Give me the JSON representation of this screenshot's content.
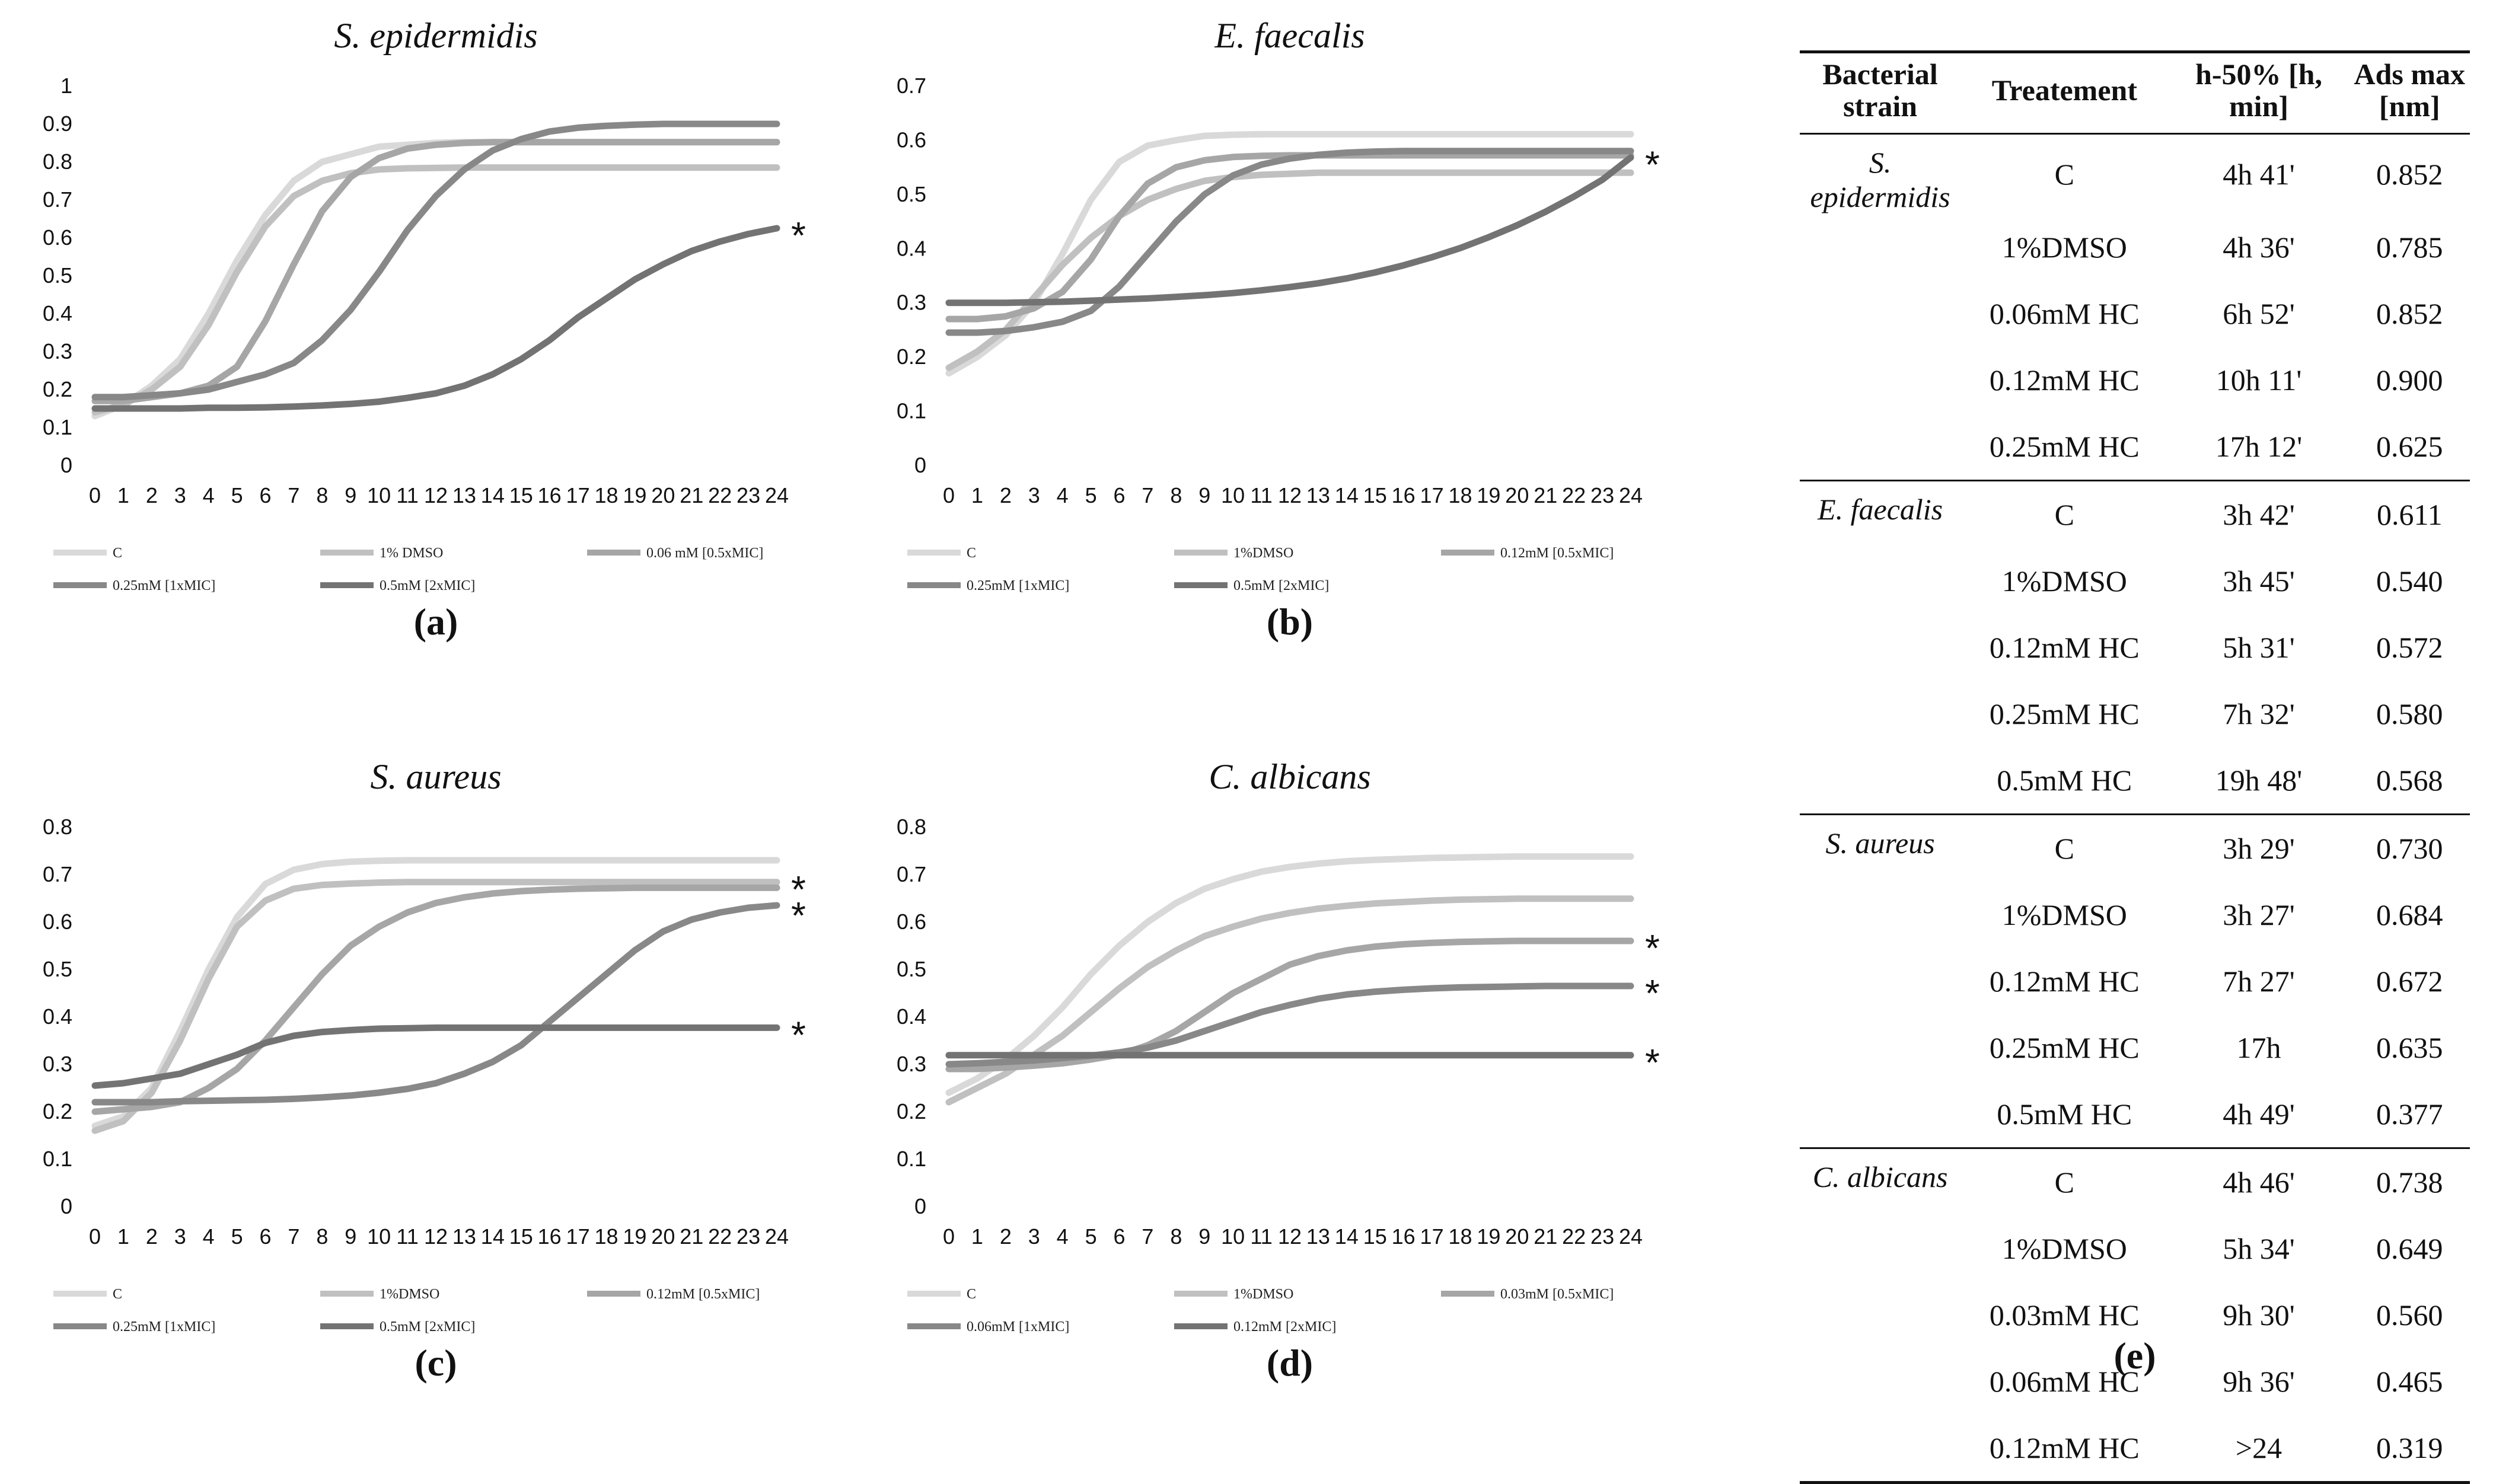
{
  "chart_data": [
    {
      "type": "line",
      "panel_label": "(a)",
      "title": "S. epidermidis",
      "x": [
        0,
        1,
        2,
        3,
        4,
        5,
        6,
        7,
        8,
        9,
        10,
        11,
        12,
        13,
        14,
        15,
        16,
        17,
        18,
        19,
        20,
        21,
        22,
        23,
        24
      ],
      "ylim": [
        0,
        1
      ],
      "yticks": [
        "0",
        "0.1",
        "0.2",
        "0.3",
        "0.4",
        "0.5",
        "0.6",
        "0.7",
        "0.8",
        "0.9",
        "1"
      ],
      "series": [
        {
          "name": "C",
          "color": "#d9d9d9",
          "values": [
            0.13,
            0.16,
            0.21,
            0.28,
            0.4,
            0.54,
            0.66,
            0.75,
            0.8,
            0.82,
            0.84,
            0.845,
            0.85,
            0.852,
            0.852,
            0.852,
            0.852,
            0.852,
            0.852,
            0.852,
            0.852,
            0.852,
            0.852,
            0.852,
            0.852
          ]
        },
        {
          "name": "1% DMSO",
          "color": "#c0c0c0",
          "values": [
            0.14,
            0.16,
            0.2,
            0.26,
            0.37,
            0.51,
            0.63,
            0.71,
            0.75,
            0.77,
            0.78,
            0.783,
            0.784,
            0.785,
            0.785,
            0.785,
            0.785,
            0.785,
            0.785,
            0.785,
            0.785,
            0.785,
            0.785,
            0.785,
            0.785
          ]
        },
        {
          "name": "0.06 mM [0.5xMIC]",
          "color": "#a6a6a6",
          "values": [
            0.17,
            0.17,
            0.18,
            0.19,
            0.21,
            0.26,
            0.38,
            0.53,
            0.67,
            0.76,
            0.81,
            0.835,
            0.845,
            0.85,
            0.852,
            0.852,
            0.852,
            0.852,
            0.852,
            0.852,
            0.852,
            0.852,
            0.852,
            0.852,
            0.852
          ]
        },
        {
          "name": "0.25mM [1xMIC]",
          "color": "#888888",
          "values": [
            0.18,
            0.18,
            0.185,
            0.19,
            0.2,
            0.22,
            0.24,
            0.27,
            0.33,
            0.41,
            0.51,
            0.62,
            0.71,
            0.78,
            0.83,
            0.86,
            0.88,
            0.89,
            0.895,
            0.898,
            0.9,
            0.9,
            0.9,
            0.9,
            0.9
          ]
        },
        {
          "name": "0.5mM [2xMIC]",
          "color": "#737373",
          "values": [
            0.15,
            0.15,
            0.15,
            0.15,
            0.152,
            0.152,
            0.153,
            0.155,
            0.158,
            0.162,
            0.168,
            0.178,
            0.19,
            0.21,
            0.24,
            0.28,
            0.33,
            0.39,
            0.44,
            0.49,
            0.53,
            0.565,
            0.59,
            0.61,
            0.625
          ]
        }
      ],
      "annotations": [
        {
          "text": "*",
          "series": "0.5mM [2xMIC]"
        }
      ]
    },
    {
      "type": "line",
      "panel_label": "(b)",
      "title": "E. faecalis",
      "x": [
        0,
        1,
        2,
        3,
        4,
        5,
        6,
        7,
        8,
        9,
        10,
        11,
        12,
        13,
        14,
        15,
        16,
        17,
        18,
        19,
        20,
        21,
        22,
        23,
        24
      ],
      "ylim": [
        0,
        0.7
      ],
      "yticks": [
        "0",
        "0.1",
        "0.2",
        "0.3",
        "0.4",
        "0.5",
        "0.6",
        "0.7"
      ],
      "series": [
        {
          "name": "C",
          "color": "#d9d9d9",
          "values": [
            0.17,
            0.2,
            0.24,
            0.3,
            0.39,
            0.49,
            0.56,
            0.59,
            0.6,
            0.608,
            0.61,
            0.611,
            0.611,
            0.611,
            0.611,
            0.611,
            0.611,
            0.611,
            0.611,
            0.611,
            0.611,
            0.611,
            0.611,
            0.611,
            0.611
          ]
        },
        {
          "name": "1%DMSO",
          "color": "#c0c0c0",
          "values": [
            0.18,
            0.21,
            0.25,
            0.31,
            0.37,
            0.42,
            0.46,
            0.49,
            0.51,
            0.525,
            0.532,
            0.536,
            0.538,
            0.54,
            0.54,
            0.54,
            0.54,
            0.54,
            0.54,
            0.54,
            0.54,
            0.54,
            0.54,
            0.54,
            0.54
          ]
        },
        {
          "name": "0.12mM [0.5xMIC]",
          "color": "#a6a6a6",
          "values": [
            0.27,
            0.27,
            0.275,
            0.29,
            0.32,
            0.38,
            0.46,
            0.52,
            0.55,
            0.563,
            0.569,
            0.571,
            0.572,
            0.572,
            0.572,
            0.572,
            0.572,
            0.572,
            0.572,
            0.572,
            0.572,
            0.572,
            0.572,
            0.572,
            0.572
          ]
        },
        {
          "name": "0.25mM [1xMIC]",
          "color": "#888888",
          "values": [
            0.245,
            0.245,
            0.248,
            0.255,
            0.265,
            0.285,
            0.33,
            0.39,
            0.45,
            0.5,
            0.535,
            0.555,
            0.566,
            0.573,
            0.577,
            0.579,
            0.58,
            0.58,
            0.58,
            0.58,
            0.58,
            0.58,
            0.58,
            0.58,
            0.58
          ]
        },
        {
          "name": "0.5mM [2xMIC]",
          "color": "#737373",
          "values": [
            0.3,
            0.3,
            0.3,
            0.301,
            0.302,
            0.304,
            0.306,
            0.308,
            0.311,
            0.314,
            0.318,
            0.323,
            0.329,
            0.336,
            0.345,
            0.356,
            0.369,
            0.384,
            0.401,
            0.421,
            0.443,
            0.468,
            0.496,
            0.527,
            0.568
          ]
        }
      ],
      "annotations": [
        {
          "text": "*",
          "series": "0.5mM [2xMIC]"
        }
      ]
    },
    {
      "type": "line",
      "panel_label": "(c)",
      "title": "S. aureus",
      "x": [
        0,
        1,
        2,
        3,
        4,
        5,
        6,
        7,
        8,
        9,
        10,
        11,
        12,
        13,
        14,
        15,
        16,
        17,
        18,
        19,
        20,
        21,
        22,
        23,
        24
      ],
      "ylim": [
        0,
        0.8
      ],
      "yticks": [
        "0",
        "0.1",
        "0.2",
        "0.3",
        "0.4",
        "0.5",
        "0.6",
        "0.7",
        "0.8"
      ],
      "series": [
        {
          "name": "C",
          "color": "#d9d9d9",
          "values": [
            0.17,
            0.19,
            0.25,
            0.37,
            0.5,
            0.61,
            0.68,
            0.71,
            0.722,
            0.727,
            0.729,
            0.73,
            0.73,
            0.73,
            0.73,
            0.73,
            0.73,
            0.73,
            0.73,
            0.73,
            0.73,
            0.73,
            0.73,
            0.73,
            0.73
          ]
        },
        {
          "name": "1%DMSO",
          "color": "#c0c0c0",
          "values": [
            0.16,
            0.18,
            0.24,
            0.35,
            0.48,
            0.59,
            0.645,
            0.67,
            0.678,
            0.681,
            0.683,
            0.684,
            0.684,
            0.684,
            0.684,
            0.684,
            0.684,
            0.684,
            0.684,
            0.684,
            0.684,
            0.684,
            0.684,
            0.684,
            0.684
          ]
        },
        {
          "name": "0.12mM [0.5xMIC]",
          "color": "#a6a6a6",
          "values": [
            0.2,
            0.205,
            0.21,
            0.22,
            0.25,
            0.29,
            0.35,
            0.42,
            0.49,
            0.55,
            0.59,
            0.62,
            0.64,
            0.652,
            0.66,
            0.665,
            0.668,
            0.67,
            0.671,
            0.672,
            0.672,
            0.672,
            0.672,
            0.672,
            0.672
          ]
        },
        {
          "name": "0.25mM [1xMIC]",
          "color": "#888888",
          "values": [
            0.22,
            0.22,
            0.22,
            0.222,
            0.223,
            0.224,
            0.225,
            0.227,
            0.23,
            0.234,
            0.24,
            0.248,
            0.26,
            0.28,
            0.305,
            0.34,
            0.39,
            0.44,
            0.49,
            0.54,
            0.58,
            0.605,
            0.62,
            0.63,
            0.635
          ]
        },
        {
          "name": "0.5mM [2xMIC]",
          "color": "#737373",
          "values": [
            0.255,
            0.26,
            0.27,
            0.28,
            0.3,
            0.32,
            0.345,
            0.36,
            0.368,
            0.372,
            0.375,
            0.376,
            0.377,
            0.377,
            0.377,
            0.377,
            0.377,
            0.377,
            0.377,
            0.377,
            0.377,
            0.377,
            0.377,
            0.377,
            0.377
          ]
        }
      ],
      "annotations": [
        {
          "text": "*",
          "series": "1%DMSO"
        },
        {
          "text": "*",
          "series": "0.25mM [1xMIC]"
        },
        {
          "text": "*",
          "series": "0.5mM [2xMIC]"
        }
      ]
    },
    {
      "type": "line",
      "panel_label": "(d)",
      "title": "C. albicans",
      "x": [
        0,
        1,
        2,
        3,
        4,
        5,
        6,
        7,
        8,
        9,
        10,
        11,
        12,
        13,
        14,
        15,
        16,
        17,
        18,
        19,
        20,
        21,
        22,
        23,
        24
      ],
      "ylim": [
        0,
        0.8
      ],
      "yticks": [
        "0",
        "0.1",
        "0.2",
        "0.3",
        "0.4",
        "0.5",
        "0.6",
        "0.7",
        "0.8"
      ],
      "series": [
        {
          "name": "C",
          "color": "#d9d9d9",
          "values": [
            0.24,
            0.27,
            0.31,
            0.36,
            0.42,
            0.49,
            0.55,
            0.6,
            0.64,
            0.67,
            0.69,
            0.706,
            0.716,
            0.723,
            0.728,
            0.731,
            0.733,
            0.735,
            0.736,
            0.737,
            0.738,
            0.738,
            0.738,
            0.738,
            0.738
          ]
        },
        {
          "name": "1%DMSO",
          "color": "#c0c0c0",
          "values": [
            0.22,
            0.25,
            0.28,
            0.32,
            0.36,
            0.41,
            0.46,
            0.505,
            0.54,
            0.57,
            0.59,
            0.607,
            0.619,
            0.628,
            0.634,
            0.639,
            0.642,
            0.645,
            0.647,
            0.648,
            0.649,
            0.649,
            0.649,
            0.649,
            0.649
          ]
        },
        {
          "name": "0.03mM [0.5xMIC]",
          "color": "#a6a6a6",
          "values": [
            0.29,
            0.29,
            0.293,
            0.297,
            0.302,
            0.31,
            0.32,
            0.34,
            0.37,
            0.41,
            0.45,
            0.48,
            0.51,
            0.528,
            0.54,
            0.548,
            0.553,
            0.556,
            0.558,
            0.559,
            0.56,
            0.56,
            0.56,
            0.56,
            0.56
          ]
        },
        {
          "name": "0.06mM [1xMIC]",
          "color": "#888888",
          "values": [
            0.3,
            0.302,
            0.305,
            0.308,
            0.313,
            0.318,
            0.325,
            0.335,
            0.35,
            0.37,
            0.39,
            0.41,
            0.425,
            0.438,
            0.447,
            0.453,
            0.457,
            0.46,
            0.462,
            0.463,
            0.464,
            0.465,
            0.465,
            0.465,
            0.465
          ]
        },
        {
          "name": "0.12mM [2xMIC]",
          "color": "#737373",
          "values": [
            0.319,
            0.319,
            0.319,
            0.319,
            0.319,
            0.319,
            0.319,
            0.319,
            0.319,
            0.319,
            0.319,
            0.319,
            0.319,
            0.319,
            0.319,
            0.319,
            0.319,
            0.319,
            0.319,
            0.319,
            0.319,
            0.319,
            0.319,
            0.319,
            0.319
          ]
        }
      ],
      "annotations": [
        {
          "text": "*",
          "series": "0.03mM [0.5xMIC]"
        },
        {
          "text": "*",
          "series": "0.06mM [1xMIC]"
        },
        {
          "text": "*",
          "series": "0.12mM [2xMIC]"
        }
      ]
    },
    {
      "type": "table",
      "panel_label": "(e)",
      "headers": [
        "Bacterial strain",
        "Treatement",
        "h-50% [h, min]",
        "Ads max [nm]"
      ],
      "groups": [
        {
          "strain": "S. epidermidis",
          "rows": [
            {
              "treatment": "C",
              "h50": "4h 41'",
              "ads": "0.852"
            },
            {
              "treatment": "1%DMSO",
              "h50": "4h 36'",
              "ads": "0.785"
            },
            {
              "treatment": "0.06mM HC",
              "h50": "6h 52'",
              "ads": "0.852"
            },
            {
              "treatment": "0.12mM HC",
              "h50": "10h 11'",
              "ads": "0.900"
            },
            {
              "treatment": "0.25mM HC",
              "h50": "17h 12'",
              "ads": "0.625"
            }
          ]
        },
        {
          "strain": "E. faecalis",
          "rows": [
            {
              "treatment": "C",
              "h50": "3h 42'",
              "ads": "0.611"
            },
            {
              "treatment": "1%DMSO",
              "h50": "3h 45'",
              "ads": "0.540"
            },
            {
              "treatment": "0.12mM HC",
              "h50": "5h 31'",
              "ads": "0.572"
            },
            {
              "treatment": "0.25mM HC",
              "h50": "7h 32'",
              "ads": "0.580"
            },
            {
              "treatment": "0.5mM HC",
              "h50": "19h 48'",
              "ads": "0.568"
            }
          ]
        },
        {
          "strain": "S. aureus",
          "rows": [
            {
              "treatment": "C",
              "h50": "3h 29'",
              "ads": "0.730"
            },
            {
              "treatment": "1%DMSO",
              "h50": "3h 27'",
              "ads": "0.684"
            },
            {
              "treatment": "0.12mM HC",
              "h50": "7h 27'",
              "ads": "0.672"
            },
            {
              "treatment": "0.25mM HC",
              "h50": "17h",
              "ads": "0.635"
            },
            {
              "treatment": "0.5mM HC",
              "h50": "4h 49'",
              "ads": "0.377"
            }
          ]
        },
        {
          "strain": "C. albicans",
          "rows": [
            {
              "treatment": "C",
              "h50": "4h 46'",
              "ads": "0.738"
            },
            {
              "treatment": "1%DMSO",
              "h50": "5h 34'",
              "ads": "0.649"
            },
            {
              "treatment": "0.03mM HC",
              "h50": "9h 30'",
              "ads": "0.560"
            },
            {
              "treatment": "0.06mM HC",
              "h50": "9h 36'",
              "ads": "0.465"
            },
            {
              "treatment": "0.12mM HC",
              "h50": ">24",
              "ads": "0.319"
            }
          ]
        }
      ]
    }
  ]
}
